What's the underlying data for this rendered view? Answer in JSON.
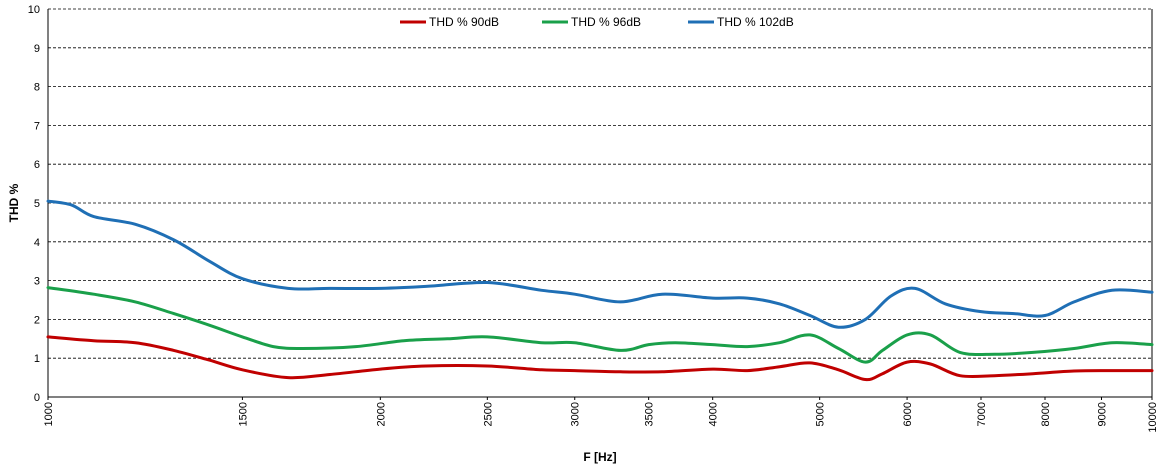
{
  "chart_data": {
    "type": "line",
    "xlabel": "F [Hz]",
    "ylabel": "THD %",
    "xscale": "log",
    "xlim": [
      1000,
      10000
    ],
    "ylim": [
      0,
      10
    ],
    "y_ticks": [
      0,
      1,
      2,
      3,
      4,
      5,
      6,
      7,
      8,
      9,
      10
    ],
    "x_ticks": [
      1000,
      1500,
      2000,
      2500,
      3000,
      3500,
      4000,
      5000,
      6000,
      7000,
      8000,
      9000,
      10000
    ],
    "grid": "horizontal dashed",
    "legend": {
      "position": "top-center",
      "entries": [
        "THD % 90dB",
        "THD % 96dB",
        "THD % 102dB"
      ]
    },
    "series": [
      {
        "name": "THD % 90dB",
        "color": "#c00000",
        "x": [
          1000,
          1100,
          1200,
          1300,
          1400,
          1500,
          1650,
          1800,
          2000,
          2200,
          2500,
          2800,
          3000,
          3300,
          3600,
          4000,
          4300,
          4600,
          4900,
          5200,
          5500,
          5700,
          6000,
          6300,
          6700,
          7200,
          7800,
          8500,
          9200,
          10000
        ],
        "values": [
          1.55,
          1.45,
          1.4,
          1.2,
          0.95,
          0.7,
          0.5,
          0.58,
          0.72,
          0.8,
          0.8,
          0.7,
          0.68,
          0.65,
          0.65,
          0.72,
          0.68,
          0.78,
          0.88,
          0.7,
          0.45,
          0.6,
          0.9,
          0.85,
          0.55,
          0.55,
          0.6,
          0.67,
          0.68,
          0.68
        ]
      },
      {
        "name": "THD % 96dB",
        "color": "#1aa04a",
        "x": [
          1000,
          1100,
          1200,
          1300,
          1400,
          1500,
          1600,
          1700,
          1900,
          2100,
          2300,
          2500,
          2800,
          3000,
          3300,
          3500,
          3700,
          4000,
          4300,
          4600,
          4900,
          5200,
          5500,
          5700,
          6000,
          6300,
          6700,
          7200,
          7800,
          8500,
          9200,
          10000
        ],
        "values": [
          2.82,
          2.65,
          2.45,
          2.15,
          1.85,
          1.55,
          1.3,
          1.25,
          1.3,
          1.45,
          1.5,
          1.55,
          1.4,
          1.4,
          1.2,
          1.35,
          1.4,
          1.35,
          1.3,
          1.4,
          1.6,
          1.25,
          0.9,
          1.2,
          1.6,
          1.6,
          1.15,
          1.1,
          1.15,
          1.25,
          1.4,
          1.35
        ]
      },
      {
        "name": "THD % 102dB",
        "color": "#1f6fb5",
        "x": [
          1000,
          1050,
          1100,
          1200,
          1300,
          1400,
          1500,
          1650,
          1800,
          2000,
          2200,
          2500,
          2800,
          3000,
          3300,
          3600,
          4000,
          4300,
          4600,
          4900,
          5200,
          5500,
          5800,
          6100,
          6500,
          7000,
          7500,
          8000,
          8500,
          9200,
          10000
        ],
        "values": [
          5.05,
          4.95,
          4.65,
          4.45,
          4.05,
          3.5,
          3.05,
          2.8,
          2.8,
          2.8,
          2.85,
          2.95,
          2.75,
          2.65,
          2.45,
          2.65,
          2.55,
          2.55,
          2.4,
          2.1,
          1.8,
          2.0,
          2.6,
          2.8,
          2.4,
          2.2,
          2.15,
          2.1,
          2.45,
          2.75,
          2.7
        ]
      }
    ]
  }
}
